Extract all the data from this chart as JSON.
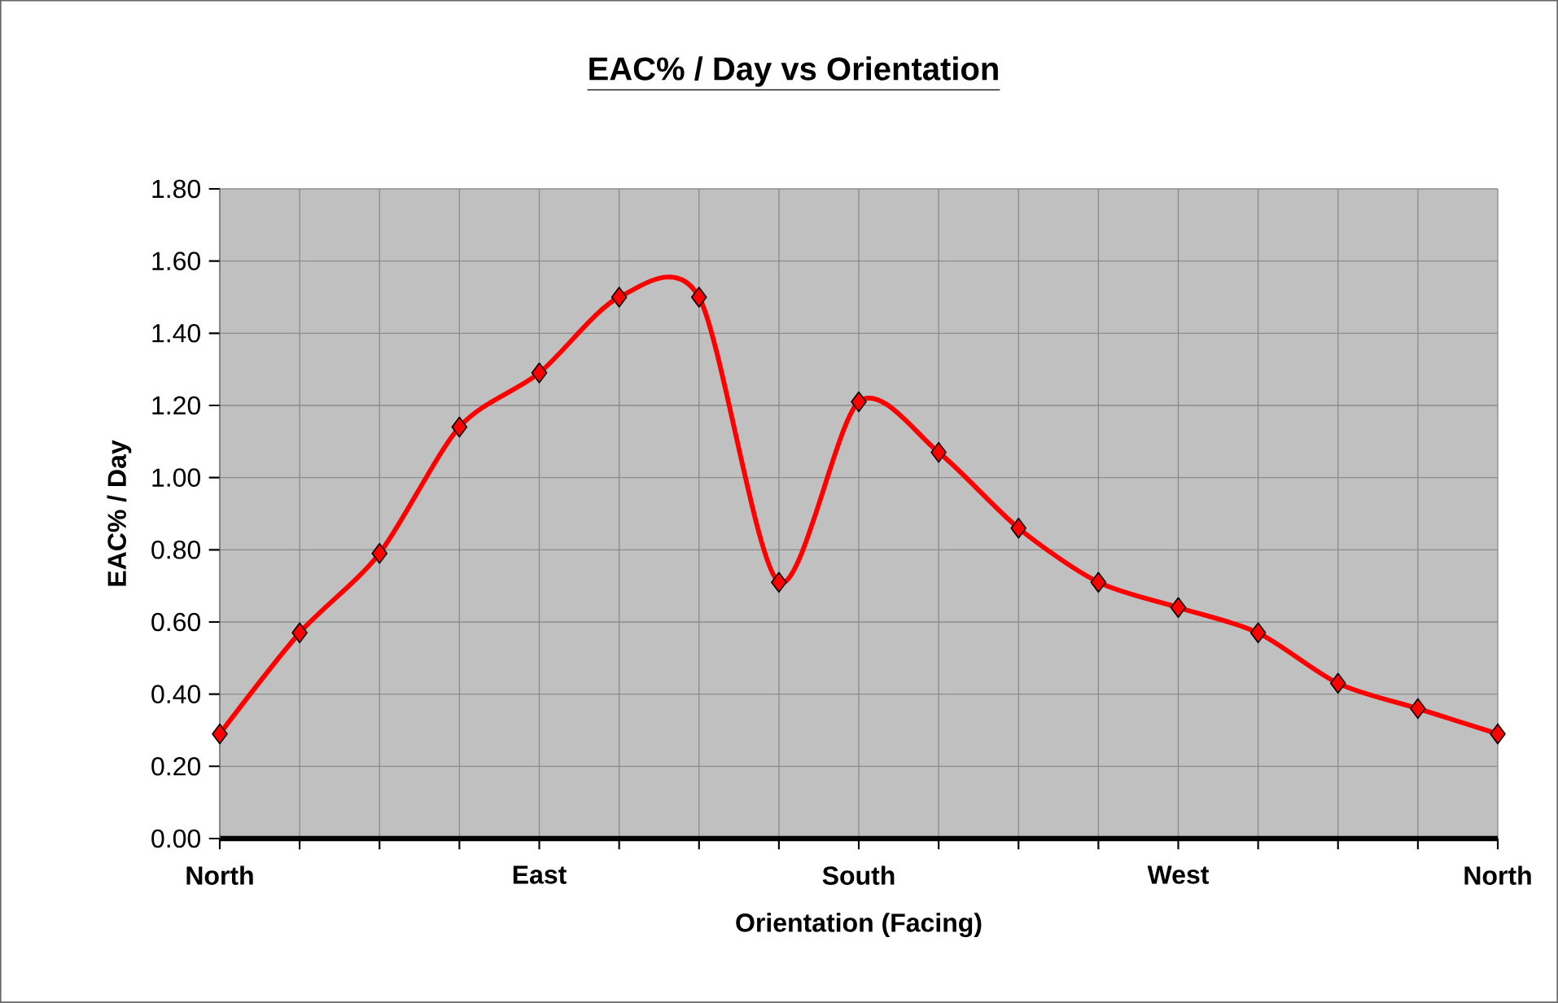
{
  "chart_data": {
    "type": "line",
    "title": "EAC% / Day vs Orientation",
    "xlabel": "Orientation (Facing)",
    "ylabel": "EAC% / Day",
    "categories": [
      "North",
      null,
      null,
      null,
      "East",
      null,
      null,
      null,
      "South",
      null,
      null,
      null,
      "West",
      null,
      null,
      null,
      "North"
    ],
    "series": [
      {
        "color": "#ff0000",
        "values": [
          0.29,
          0.57,
          0.79,
          1.14,
          1.29,
          1.5,
          1.5,
          0.71,
          1.21,
          1.07,
          0.86,
          0.71,
          0.64,
          0.57,
          0.43,
          0.36,
          0.29
        ]
      }
    ],
    "ylim": [
      0,
      1.8
    ],
    "yticks": [
      {
        "value": 0,
        "label": "0.00"
      },
      {
        "value": 0.2,
        "label": "0.20"
      },
      {
        "value": 0.4,
        "label": "0.40"
      },
      {
        "value": 0.6,
        "label": "0.60"
      },
      {
        "value": 0.8,
        "label": "0.80"
      },
      {
        "value": 1.0,
        "label": "1.00"
      },
      {
        "value": 1.2,
        "label": "1.20"
      },
      {
        "value": 1.4,
        "label": "1.40"
      },
      {
        "value": 1.6,
        "label": "1.60"
      },
      {
        "value": 1.8,
        "label": "1.80"
      }
    ],
    "grid": true,
    "marker": "diamond",
    "line_style": "solid"
  }
}
